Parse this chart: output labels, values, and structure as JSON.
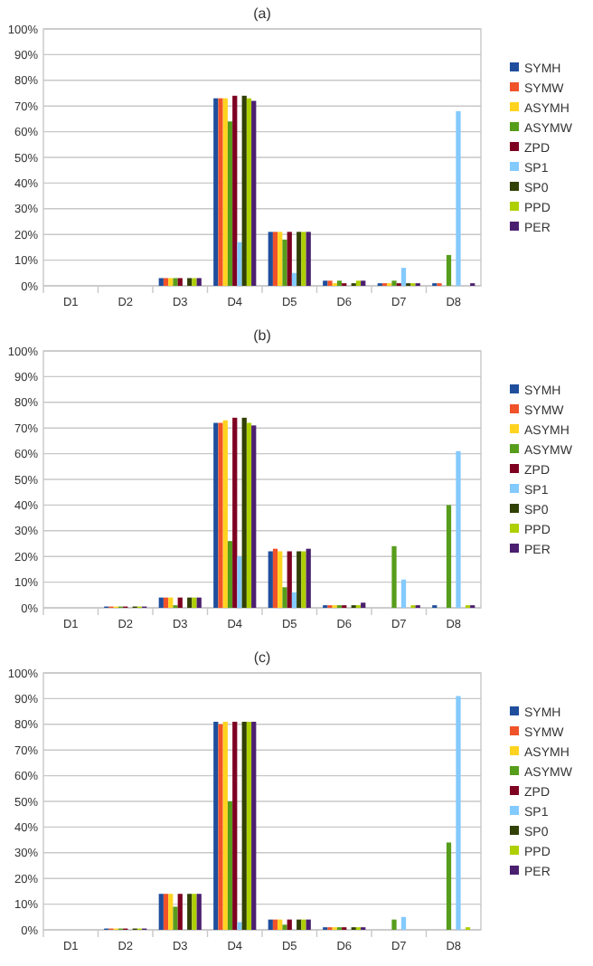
{
  "chart_data": [
    {
      "type": "bar",
      "title": "(a)",
      "categories": [
        "D1",
        "D2",
        "D3",
        "D4",
        "D5",
        "D6",
        "D7",
        "D8"
      ],
      "ylim": [
        0,
        100
      ],
      "yticks": [
        {
          "value": 0,
          "label": "0%"
        },
        {
          "value": 10,
          "label": "10%"
        },
        {
          "value": 20,
          "label": "20%"
        },
        {
          "value": 30,
          "label": "30%"
        },
        {
          "value": 40,
          "label": "40%"
        },
        {
          "value": 50,
          "label": "50%"
        },
        {
          "value": 60,
          "label": "60%"
        },
        {
          "value": 70,
          "label": "70%"
        },
        {
          "value": 80,
          "label": "80%"
        },
        {
          "value": 90,
          "label": "90%"
        },
        {
          "value": 100,
          "label": "100%"
        }
      ],
      "grid": "y",
      "legend": "right",
      "series": [
        {
          "name": "SYMH",
          "color": "#1f4e9c",
          "values": [
            0,
            0,
            3,
            73,
            21,
            2,
            1,
            1
          ]
        },
        {
          "name": "SYMW",
          "color": "#f0522a",
          "values": [
            0,
            0,
            3,
            73,
            21,
            2,
            1,
            1
          ]
        },
        {
          "name": "ASYMH",
          "color": "#ffd320",
          "values": [
            0,
            0,
            3,
            73,
            21,
            1,
            1,
            0
          ]
        },
        {
          "name": "ASYMW",
          "color": "#579d1c",
          "values": [
            0,
            0,
            3,
            64,
            18,
            2,
            2,
            12
          ]
        },
        {
          "name": "ZPD",
          "color": "#7e0021",
          "values": [
            0,
            0,
            3,
            74,
            21,
            1,
            1,
            0
          ]
        },
        {
          "name": "SP1",
          "color": "#83caff",
          "values": [
            0,
            0,
            0,
            17,
            5,
            0,
            7,
            68
          ]
        },
        {
          "name": "SP0",
          "color": "#314004",
          "values": [
            0,
            0,
            3,
            74,
            21,
            1,
            1,
            0
          ]
        },
        {
          "name": "PPD",
          "color": "#aecf00",
          "values": [
            0,
            0,
            3,
            73,
            21,
            2,
            1,
            0
          ]
        },
        {
          "name": "PER",
          "color": "#4b1f6f",
          "values": [
            0,
            0,
            3,
            72,
            21,
            2,
            1,
            1
          ]
        }
      ]
    },
    {
      "type": "bar",
      "title": "(b)",
      "categories": [
        "D1",
        "D2",
        "D3",
        "D4",
        "D5",
        "D6",
        "D7",
        "D8"
      ],
      "ylim": [
        0,
        100
      ],
      "yticks": [
        {
          "value": 0,
          "label": "0%"
        },
        {
          "value": 10,
          "label": "10%"
        },
        {
          "value": 20,
          "label": "20%"
        },
        {
          "value": 30,
          "label": "30%"
        },
        {
          "value": 40,
          "label": "40%"
        },
        {
          "value": 50,
          "label": "50%"
        },
        {
          "value": 60,
          "label": "60%"
        },
        {
          "value": 70,
          "label": "70%"
        },
        {
          "value": 80,
          "label": "80%"
        },
        {
          "value": 90,
          "label": "90%"
        },
        {
          "value": 100,
          "label": "100%"
        }
      ],
      "grid": "y",
      "legend": "right",
      "series": [
        {
          "name": "SYMH",
          "color": "#1f4e9c",
          "values": [
            0,
            0.5,
            4,
            72,
            22,
            1,
            0,
            1
          ]
        },
        {
          "name": "SYMW",
          "color": "#f0522a",
          "values": [
            0,
            0.5,
            4,
            72,
            23,
            1,
            0,
            0
          ]
        },
        {
          "name": "ASYMH",
          "color": "#ffd320",
          "values": [
            0,
            0.5,
            4,
            73,
            22,
            1,
            0,
            0
          ]
        },
        {
          "name": "ASYMW",
          "color": "#579d1c",
          "values": [
            0,
            0.5,
            1,
            26,
            8,
            1,
            24,
            40
          ]
        },
        {
          "name": "ZPD",
          "color": "#7e0021",
          "values": [
            0,
            0.5,
            4,
            74,
            22,
            1,
            0,
            0
          ]
        },
        {
          "name": "SP1",
          "color": "#83caff",
          "values": [
            0,
            0,
            0,
            20,
            6,
            0,
            11,
            61
          ]
        },
        {
          "name": "SP0",
          "color": "#314004",
          "values": [
            0,
            0.5,
            4,
            74,
            22,
            1,
            0,
            0
          ]
        },
        {
          "name": "PPD",
          "color": "#aecf00",
          "values": [
            0,
            0.5,
            4,
            72,
            22,
            1,
            1,
            1
          ]
        },
        {
          "name": "PER",
          "color": "#4b1f6f",
          "values": [
            0,
            0.5,
            4,
            71,
            23,
            2,
            1,
            1
          ]
        }
      ]
    },
    {
      "type": "bar",
      "title": "(c)",
      "categories": [
        "D1",
        "D2",
        "D3",
        "D4",
        "D5",
        "D6",
        "D7",
        "D8"
      ],
      "ylim": [
        0,
        100
      ],
      "yticks": [
        {
          "value": 0,
          "label": "0%"
        },
        {
          "value": 10,
          "label": "10%"
        },
        {
          "value": 20,
          "label": "20%"
        },
        {
          "value": 30,
          "label": "30%"
        },
        {
          "value": 40,
          "label": "40%"
        },
        {
          "value": 50,
          "label": "50%"
        },
        {
          "value": 60,
          "label": "60%"
        },
        {
          "value": 70,
          "label": "70%"
        },
        {
          "value": 80,
          "label": "80%"
        },
        {
          "value": 90,
          "label": "90%"
        },
        {
          "value": 100,
          "label": "100%"
        }
      ],
      "grid": "y",
      "legend": "right",
      "series": [
        {
          "name": "SYMH",
          "color": "#1f4e9c",
          "values": [
            0,
            0.5,
            14,
            81,
            4,
            1,
            0,
            0
          ]
        },
        {
          "name": "SYMW",
          "color": "#f0522a",
          "values": [
            0,
            0.5,
            14,
            80,
            4,
            1,
            0,
            0
          ]
        },
        {
          "name": "ASYMH",
          "color": "#ffd320",
          "values": [
            0,
            0.5,
            14,
            81,
            4,
            1,
            0,
            0
          ]
        },
        {
          "name": "ASYMW",
          "color": "#579d1c",
          "values": [
            0,
            0.5,
            9,
            50,
            2,
            1,
            4,
            34
          ]
        },
        {
          "name": "ZPD",
          "color": "#7e0021",
          "values": [
            0,
            0.5,
            14,
            81,
            4,
            1,
            0,
            0
          ]
        },
        {
          "name": "SP1",
          "color": "#83caff",
          "values": [
            0,
            0,
            0,
            3,
            0,
            0,
            5,
            91
          ]
        },
        {
          "name": "SP0",
          "color": "#314004",
          "values": [
            0,
            0.5,
            14,
            81,
            4,
            1,
            0,
            0
          ]
        },
        {
          "name": "PPD",
          "color": "#aecf00",
          "values": [
            0,
            0.5,
            14,
            81,
            4,
            1,
            0,
            1
          ]
        },
        {
          "name": "PER",
          "color": "#4b1f6f",
          "values": [
            0,
            0.5,
            14,
            81,
            4,
            1,
            0,
            0
          ]
        }
      ]
    }
  ]
}
